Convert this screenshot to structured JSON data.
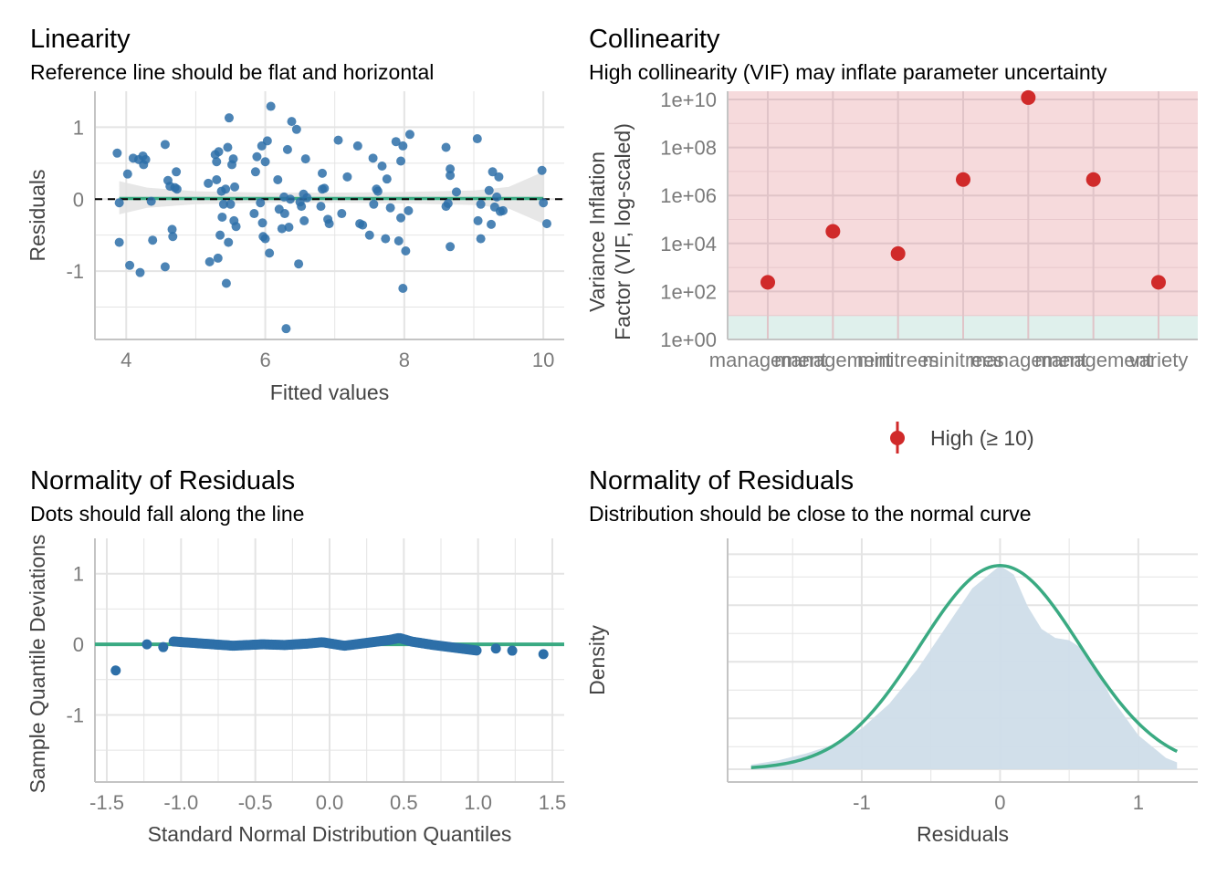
{
  "panels": {
    "linearity": {
      "title": "Linearity",
      "subtitle": "Reference line should be flat and horizontal"
    },
    "collinearity": {
      "title": "Collinearity",
      "subtitle": "High collinearity (VIF) may inflate parameter uncertainty"
    },
    "qq": {
      "title": "Normality of Residuals",
      "subtitle": "Dots should fall along the line"
    },
    "density": {
      "title": "Normality of Residuals",
      "subtitle": "Distribution should be close to the normal curve"
    }
  },
  "colors": {
    "points": "#2d6fa8",
    "reference_line": "#3aaa82",
    "high_vif": "#d02a2a",
    "high_zone": "#f6dadc",
    "low_zone": "#dff0ec",
    "density_fill": "#cfdde9",
    "band": "#e3e3e3"
  },
  "chart_data": [
    {
      "type": "scatter",
      "title": "Linearity",
      "subtitle": "Reference line should be flat and horizontal",
      "xlabel": "Fitted values",
      "ylabel": "Residuals",
      "xlim": [
        3.55,
        10.3
      ],
      "ylim": [
        -1.95,
        1.5
      ],
      "xticks": [
        4,
        6,
        8,
        10
      ],
      "xtick_labels": [
        "4",
        "6",
        "8",
        "10"
      ],
      "yticks": [
        -1,
        0,
        1
      ],
      "ytick_labels": [
        "-1",
        "0",
        "1"
      ],
      "reference_line_y": 0,
      "points": [
        [
          3.87,
          0.64
        ],
        [
          3.9,
          -0.05
        ],
        [
          3.9,
          -0.6
        ],
        [
          4.02,
          0.35
        ],
        [
          4.05,
          -0.92
        ],
        [
          4.1,
          0.57
        ],
        [
          4.18,
          0.55
        ],
        [
          4.2,
          -1.02
        ],
        [
          4.24,
          0.6
        ],
        [
          4.25,
          0.48
        ],
        [
          4.28,
          0.55
        ],
        [
          4.36,
          -0.03
        ],
        [
          4.38,
          -0.57
        ],
        [
          4.56,
          0.76
        ],
        [
          4.56,
          -0.94
        ],
        [
          4.6,
          0.26
        ],
        [
          4.63,
          0.18
        ],
        [
          4.66,
          -0.42
        ],
        [
          4.67,
          -0.52
        ],
        [
          4.7,
          0.16
        ],
        [
          4.72,
          0.38
        ],
        [
          4.73,
          0.14
        ],
        [
          5.18,
          0.22
        ],
        [
          5.2,
          -0.87
        ],
        [
          5.28,
          0.62
        ],
        [
          5.3,
          0.52
        ],
        [
          5.3,
          0.27
        ],
        [
          5.32,
          -0.82
        ],
        [
          5.33,
          0.66
        ],
        [
          5.35,
          -0.5
        ],
        [
          5.37,
          0.11
        ],
        [
          5.38,
          -0.25
        ],
        [
          5.4,
          -0.07
        ],
        [
          5.43,
          0.14
        ],
        [
          5.44,
          -1.17
        ],
        [
          5.46,
          0.72
        ],
        [
          5.47,
          -0.6
        ],
        [
          5.48,
          1.13
        ],
        [
          5.5,
          -0.07
        ],
        [
          5.52,
          0.48
        ],
        [
          5.54,
          0.56
        ],
        [
          5.55,
          -0.3
        ],
        [
          5.56,
          0.17
        ],
        [
          5.58,
          -0.38
        ],
        [
          5.84,
          -0.2
        ],
        [
          5.86,
          0.38
        ],
        [
          5.88,
          0.59
        ],
        [
          5.93,
          -0.05
        ],
        [
          5.95,
          0.74
        ],
        [
          5.96,
          -0.33
        ],
        [
          5.97,
          -0.52
        ],
        [
          6.0,
          0.52
        ],
        [
          6.0,
          -0.55
        ],
        [
          6.03,
          0.81
        ],
        [
          6.06,
          -0.75
        ],
        [
          6.08,
          1.29
        ],
        [
          6.18,
          0.27
        ],
        [
          6.2,
          -0.14
        ],
        [
          6.24,
          -0.41
        ],
        [
          6.27,
          0.03
        ],
        [
          6.28,
          -0.2
        ],
        [
          6.3,
          -1.8
        ],
        [
          6.32,
          0.69
        ],
        [
          6.34,
          -0.39
        ],
        [
          6.36,
          0.0
        ],
        [
          6.38,
          1.08
        ],
        [
          6.45,
          0.97
        ],
        [
          6.48,
          -0.9
        ],
        [
          6.5,
          -0.04
        ],
        [
          6.52,
          -0.1
        ],
        [
          6.55,
          0.07
        ],
        [
          6.56,
          -0.3
        ],
        [
          6.58,
          0.56
        ],
        [
          6.6,
          0.02
        ],
        [
          6.8,
          -0.1
        ],
        [
          6.82,
          0.36
        ],
        [
          6.82,
          0.14
        ],
        [
          6.85,
          0.15
        ],
        [
          6.9,
          -0.28
        ],
        [
          6.92,
          -0.34
        ],
        [
          7.05,
          0.82
        ],
        [
          7.1,
          -0.2
        ],
        [
          7.18,
          0.31
        ],
        [
          7.33,
          0.74
        ],
        [
          7.36,
          -0.34
        ],
        [
          7.4,
          -0.36
        ],
        [
          7.5,
          -0.5
        ],
        [
          7.55,
          0.57
        ],
        [
          7.56,
          -0.07
        ],
        [
          7.6,
          0.14
        ],
        [
          7.62,
          0.11
        ],
        [
          7.68,
          0.46
        ],
        [
          7.73,
          -0.55
        ],
        [
          7.75,
          0.28
        ],
        [
          7.8,
          -0.12
        ],
        [
          7.88,
          0.8
        ],
        [
          7.92,
          -0.58
        ],
        [
          7.95,
          -0.26
        ],
        [
          7.95,
          0.53
        ],
        [
          7.98,
          -1.24
        ],
        [
          7.98,
          0.74
        ],
        [
          8.02,
          -0.72
        ],
        [
          8.06,
          -0.16
        ],
        [
          8.08,
          0.9
        ],
        [
          8.6,
          0.72
        ],
        [
          8.6,
          -0.1
        ],
        [
          8.63,
          -0.06
        ],
        [
          8.66,
          0.42
        ],
        [
          8.66,
          0.33
        ],
        [
          8.66,
          -0.66
        ],
        [
          8.75,
          0.1
        ],
        [
          9.05,
          0.84
        ],
        [
          9.06,
          -0.3
        ],
        [
          9.1,
          -0.07
        ],
        [
          9.1,
          -0.55
        ],
        [
          9.22,
          0.12
        ],
        [
          9.25,
          -0.35
        ],
        [
          9.27,
          0.38
        ],
        [
          9.3,
          -0.11
        ],
        [
          9.33,
          0.03
        ],
        [
          9.36,
          0.31
        ],
        [
          9.38,
          -0.17
        ],
        [
          9.42,
          -0.16
        ],
        [
          9.98,
          0.4
        ],
        [
          10.0,
          -0.05
        ],
        [
          10.05,
          -0.34
        ]
      ]
    },
    {
      "type": "scatter",
      "title": "Collinearity",
      "subtitle": "High collinearity (VIF) may inflate parameter uncertainty",
      "xlabel": "",
      "ylabel": "Variance Inflation Factor (VIF, log-scaled)",
      "y_scale": "log10",
      "ylim_log10": [
        0,
        10
      ],
      "ytick_labels": [
        "1e+00",
        "1e+02",
        "1e+04",
        "1e+06",
        "1e+08",
        "1e+10"
      ],
      "categories": [
        "management",
        "management",
        "minitrees",
        "minitrees",
        "management",
        "management",
        "variety"
      ],
      "category_labels_overlap": true,
      "vif": [
        240,
        32000,
        3800,
        4600000,
        12000000000,
        4600000,
        240
      ],
      "legend": {
        "label": "High (≥ 10)",
        "placement": "bottom"
      },
      "zones": {
        "low_max": 5,
        "high_min": 10
      }
    },
    {
      "type": "scatter",
      "title": "Normality of Residuals",
      "subtitle": "Dots should fall along the line",
      "xlabel": "Standard Normal Distribution Quantiles",
      "ylabel": "Sample Quantile Deviations",
      "xlim": [
        -1.58,
        1.58
      ],
      "ylim": [
        -1.95,
        1.5
      ],
      "xticks": [
        -1.5,
        -1.0,
        -0.5,
        0.0,
        0.5,
        1.0,
        1.5
      ],
      "xtick_labels": [
        "-1.5",
        "-1.0",
        "-0.5",
        "0.0",
        "0.5",
        "1.0",
        "1.5"
      ],
      "yticks": [
        -1,
        0,
        1
      ],
      "ytick_labels": [
        "-1",
        "0",
        "1"
      ],
      "reference_line_y": 0,
      "outliers": [
        [
          -1.44,
          -0.37
        ],
        [
          -1.23,
          0.0
        ],
        [
          -1.12,
          -0.04
        ],
        [
          1.12,
          -0.06
        ],
        [
          1.23,
          -0.09
        ],
        [
          1.44,
          -0.14
        ]
      ],
      "trend": [
        [
          -1.05,
          0.04
        ],
        [
          -0.85,
          0.01
        ],
        [
          -0.65,
          -0.02
        ],
        [
          -0.45,
          0.0
        ],
        [
          -0.3,
          -0.01
        ],
        [
          -0.15,
          0.01
        ],
        [
          -0.05,
          0.03
        ],
        [
          0.1,
          -0.02
        ],
        [
          0.25,
          0.02
        ],
        [
          0.4,
          0.06
        ],
        [
          0.47,
          0.09
        ],
        [
          0.55,
          0.04
        ],
        [
          0.7,
          -0.01
        ],
        [
          0.85,
          -0.05
        ],
        [
          1.0,
          -0.09
        ]
      ]
    },
    {
      "type": "area",
      "title": "Normality of Residuals",
      "subtitle": "Distribution should be close to the normal curve",
      "xlabel": "Residuals",
      "ylabel": "Density",
      "xlim": [
        -1.97,
        1.43
      ],
      "xticks": [
        -1,
        0,
        1
      ],
      "xtick_labels": [
        "-1",
        "0",
        "1"
      ],
      "density_x": [
        -1.8,
        -1.6,
        -1.4,
        -1.2,
        -1.0,
        -0.8,
        -0.6,
        -0.4,
        -0.2,
        0.0,
        0.1,
        0.2,
        0.3,
        0.4,
        0.5,
        0.6,
        0.7,
        0.8,
        1.0,
        1.2,
        1.28
      ],
      "density_y": [
        0.02,
        0.04,
        0.07,
        0.11,
        0.18,
        0.29,
        0.44,
        0.62,
        0.8,
        0.9,
        0.86,
        0.72,
        0.62,
        0.58,
        0.57,
        0.53,
        0.44,
        0.32,
        0.15,
        0.05,
        0.03
      ],
      "normal_mean": 0.0,
      "normal_sd": 0.58,
      "normal_peak": 0.9,
      "ylim": [
        0,
        1.0
      ]
    }
  ]
}
